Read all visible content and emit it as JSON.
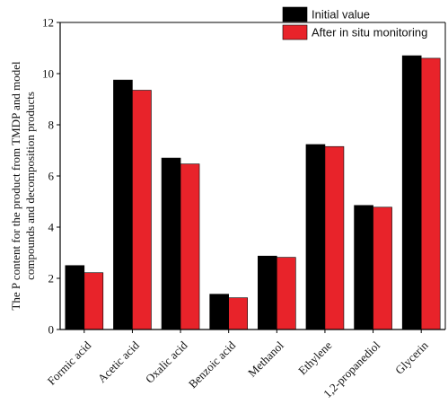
{
  "chart_data": {
    "type": "bar",
    "categories": [
      "Formic acid",
      "Acetic acid",
      "Oxalic acid",
      "Benzoic acid",
      "Methanol",
      "Ethylene",
      "1,2-propanediol",
      "Glycerin"
    ],
    "series": [
      {
        "name": "Initial value",
        "color": "#000000",
        "values": [
          2.5,
          9.75,
          6.7,
          1.38,
          2.87,
          7.23,
          4.85,
          10.7
        ]
      },
      {
        "name": "After in situ monitoring",
        "color": "#e8232a",
        "values": [
          2.22,
          9.35,
          6.47,
          1.24,
          2.82,
          7.15,
          4.78,
          10.6
        ]
      }
    ],
    "ylabel_line1": "The P content for the product from TMDP and model",
    "ylabel_line2": "compounds and decomposition products",
    "xlabel": "",
    "ylim": [
      0,
      12
    ],
    "yticks": [
      "0",
      "2",
      "4",
      "6",
      "8",
      "10",
      "12"
    ],
    "grid": false,
    "legend_position": "top-right"
  }
}
